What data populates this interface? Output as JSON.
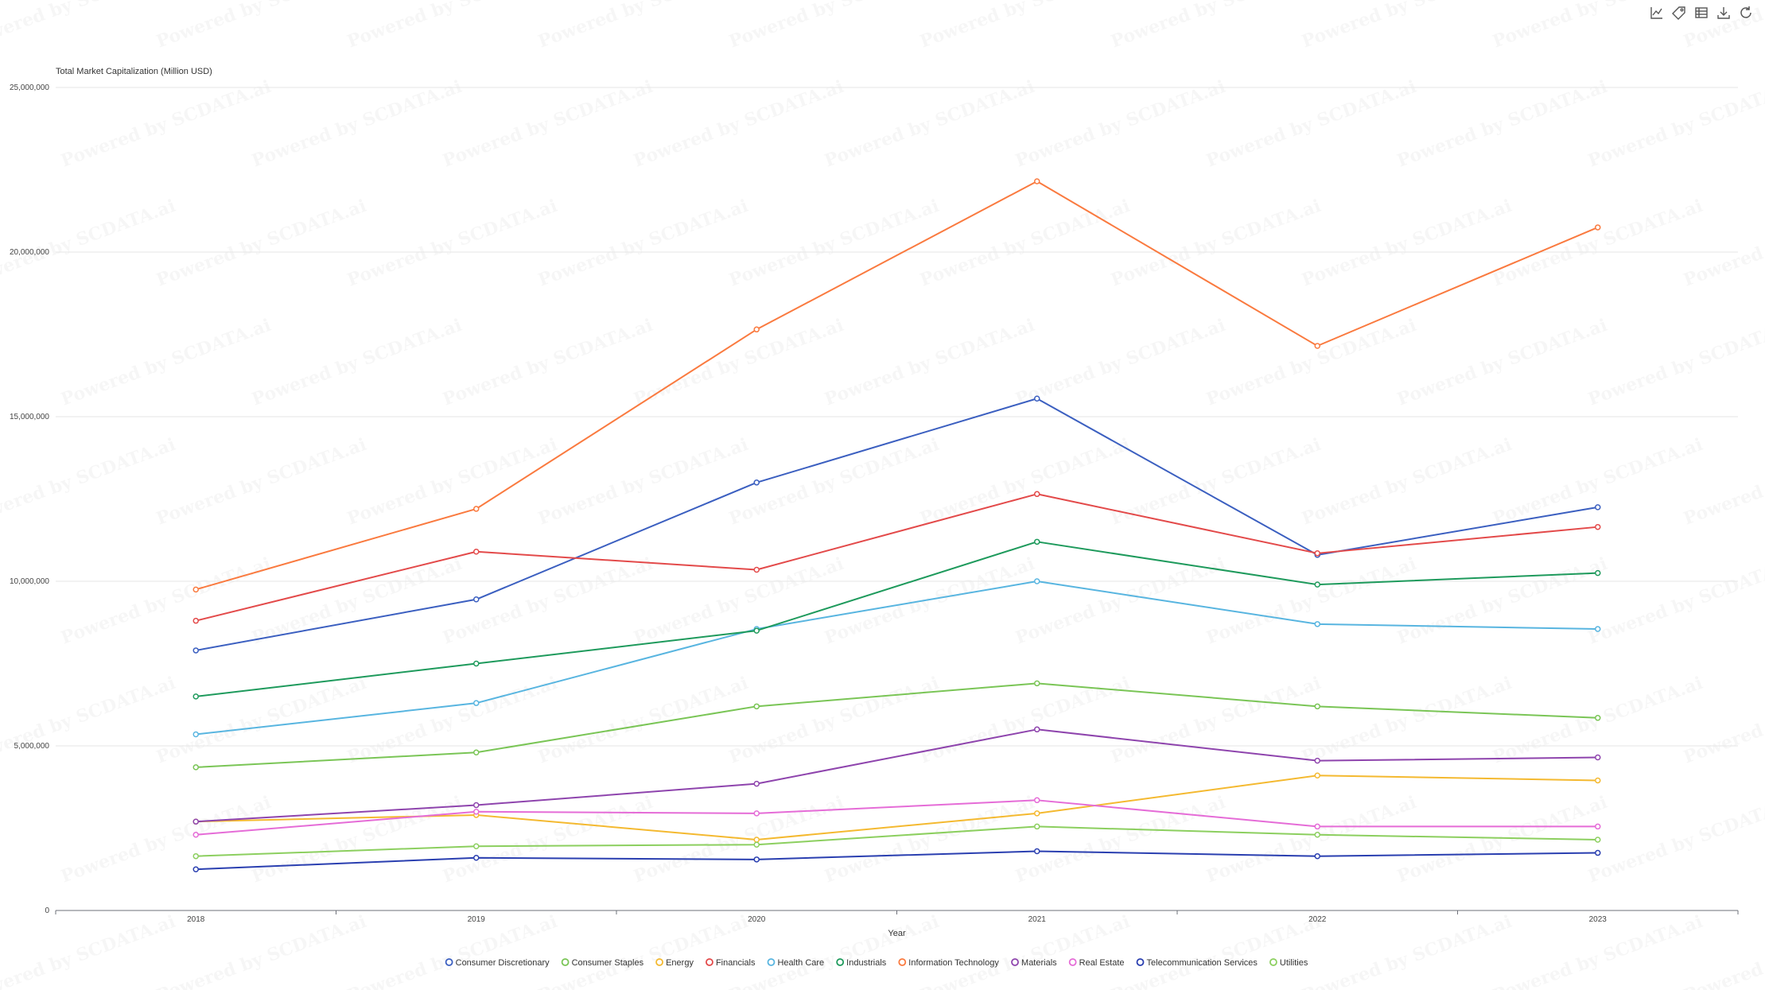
{
  "toolbar": {
    "icons": [
      "line-chart-icon",
      "tag-icon",
      "table-icon",
      "download-icon",
      "refresh-icon"
    ]
  },
  "watermark_text": "Powered by SCDATA.ai",
  "chart_data": {
    "type": "line",
    "ylabel": "Total Market Capitalization (Million USD)",
    "xlabel": "Year",
    "x": [
      "2018",
      "2019",
      "2020",
      "2021",
      "2022",
      "2023"
    ],
    "ylim": [
      0,
      25000000
    ],
    "yticks": [
      0,
      5000000,
      10000000,
      15000000,
      20000000,
      25000000
    ],
    "ytick_labels": [
      "0",
      "5,000,000",
      "10,000,000",
      "15,000,000",
      "20,000,000",
      "25,000,000"
    ],
    "grid": "horizontal",
    "legend_position": "bottom",
    "series": [
      {
        "name": "Consumer Discretionary",
        "color": "#3b5fc0",
        "values": [
          7900000,
          9450000,
          13000000,
          15550000,
          10800000,
          12250000
        ]
      },
      {
        "name": "Consumer Staples",
        "color": "#7ac556",
        "values": [
          4350000,
          4800000,
          6200000,
          6900000,
          6200000,
          5850000
        ]
      },
      {
        "name": "Energy",
        "color": "#f4b930",
        "values": [
          2700000,
          2900000,
          2150000,
          2950000,
          4100000,
          3950000
        ]
      },
      {
        "name": "Financials",
        "color": "#e34a4a",
        "values": [
          8800000,
          10900000,
          10350000,
          12650000,
          10850000,
          11650000
        ]
      },
      {
        "name": "Health Care",
        "color": "#58b5e0",
        "values": [
          5350000,
          6300000,
          8550000,
          10000000,
          8700000,
          8550000
        ]
      },
      {
        "name": "Industrials",
        "color": "#1e9a5c",
        "values": [
          6500000,
          7500000,
          8500000,
          11200000,
          9900000,
          10250000
        ]
      },
      {
        "name": "Information Technology",
        "color": "#fa7a3f",
        "values": [
          9750000,
          12200000,
          17650000,
          22150000,
          17150000,
          20750000
        ]
      },
      {
        "name": "Materials",
        "color": "#8e44ad",
        "values": [
          2700000,
          3200000,
          3850000,
          5500000,
          4550000,
          4650000
        ]
      },
      {
        "name": "Real Estate",
        "color": "#e56cd7",
        "values": [
          2300000,
          3000000,
          2950000,
          3350000,
          2550000,
          2550000
        ]
      },
      {
        "name": "Telecommunication Services",
        "color": "#2a3fb0",
        "values": [
          1250000,
          1600000,
          1550000,
          1800000,
          1650000,
          1750000
        ]
      },
      {
        "name": "Utilities",
        "color": "#8ccf5f",
        "values": [
          1650000,
          1950000,
          2000000,
          2550000,
          2300000,
          2150000
        ]
      }
    ]
  }
}
